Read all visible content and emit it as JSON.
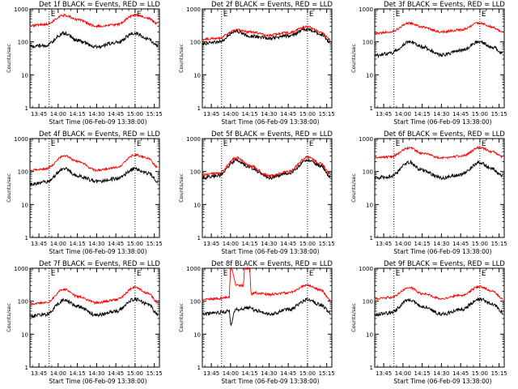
{
  "colors": {
    "events": "#000000",
    "lld": "#ff0000",
    "axes": "#000000",
    "background": "#ffffff"
  },
  "chart_data": [
    {
      "type": "line",
      "panel": 1,
      "title": "Det 1f BLACK = Events, RED = LLD",
      "xlabel": "Start Time (06-Feb-09 13:38:00)",
      "ylabel": "Counts/sec",
      "x_ticks": [
        "13:45",
        "14:00",
        "14:15",
        "14:30",
        "14:45",
        "15:00",
        "15:15"
      ],
      "y_ticks": [
        "1",
        "10",
        "100",
        "1000"
      ],
      "yscale": "log",
      "ylim": [
        1,
        1000
      ],
      "marker_times": [
        "13:53",
        "15:00"
      ],
      "corner_letters": [
        "E",
        "E"
      ],
      "series": [
        {
          "role": "events",
          "x": [
            "13:38",
            "13:50",
            "14:05",
            "14:15",
            "14:30",
            "14:45",
            "15:00",
            "15:10",
            "15:18"
          ],
          "y": [
            75,
            78,
            185,
            110,
            70,
            95,
            185,
            120,
            75
          ]
        },
        {
          "role": "lld",
          "x": [
            "13:38",
            "13:50",
            "14:05",
            "14:15",
            "14:30",
            "14:45",
            "15:00",
            "15:10",
            "15:18"
          ],
          "y": [
            310,
            340,
            640,
            470,
            300,
            330,
            650,
            520,
            350
          ]
        }
      ]
    },
    {
      "type": "line",
      "panel": 2,
      "title": "Det 2f BLACK = Events, RED = LLD",
      "xlabel": "Start Time (06-Feb-09 13:38:00)",
      "ylabel": "Counts/sec",
      "x_ticks": [
        "13:45",
        "14:00",
        "14:15",
        "14:30",
        "14:45",
        "15:00",
        "15:15"
      ],
      "y_ticks": [
        "1",
        "10",
        "100",
        "1000"
      ],
      "yscale": "log",
      "ylim": [
        1,
        1000
      ],
      "marker_times": [
        "13:53",
        "15:00"
      ],
      "corner_letters": [
        "E",
        "E"
      ],
      "series": [
        {
          "role": "events",
          "x": [
            "13:38",
            "13:50",
            "14:05",
            "14:15",
            "14:30",
            "14:45",
            "15:00",
            "15:10",
            "15:18"
          ],
          "y": [
            90,
            100,
            210,
            150,
            130,
            150,
            240,
            170,
            100
          ]
        },
        {
          "role": "lld",
          "x": [
            "13:38",
            "13:50",
            "14:05",
            "14:15",
            "14:30",
            "14:45",
            "15:00",
            "15:10",
            "15:18"
          ],
          "y": [
            120,
            130,
            230,
            200,
            160,
            190,
            290,
            200,
            120
          ]
        }
      ]
    },
    {
      "type": "line",
      "panel": 3,
      "title": "Det 3f BLACK = Events, RED = LLD",
      "xlabel": "Start Time (06-Feb-09 13:38:00)",
      "ylabel": "Counts/sec",
      "x_ticks": [
        "13:45",
        "14:00",
        "14:15",
        "14:30",
        "14:45",
        "15:00",
        "15:15"
      ],
      "y_ticks": [
        "1",
        "10",
        "100",
        "1000"
      ],
      "yscale": "log",
      "ylim": [
        1,
        1000
      ],
      "marker_times": [
        "13:53",
        "15:00"
      ],
      "corner_letters": [
        "E",
        "E"
      ],
      "series": [
        {
          "role": "events",
          "x": [
            "13:38",
            "13:50",
            "14:05",
            "14:15",
            "14:30",
            "14:45",
            "15:00",
            "15:10",
            "15:18"
          ],
          "y": [
            38,
            45,
            100,
            70,
            40,
            55,
            100,
            70,
            45
          ]
        },
        {
          "role": "lld",
          "x": [
            "13:38",
            "13:50",
            "14:05",
            "14:15",
            "14:30",
            "14:45",
            "15:00",
            "15:10",
            "15:18"
          ],
          "y": [
            180,
            200,
            370,
            280,
            200,
            230,
            380,
            280,
            200
          ]
        }
      ]
    },
    {
      "type": "line",
      "panel": 4,
      "title": "Det 4f BLACK = Events, RED = LLD",
      "xlabel": "Start Time (06-Feb-09 13:38:00)",
      "ylabel": "Counts/sec",
      "x_ticks": [
        "13:45",
        "14:00",
        "14:15",
        "14:30",
        "14:45",
        "15:00",
        "15:15"
      ],
      "y_ticks": [
        "1",
        "10",
        "100",
        "1000"
      ],
      "yscale": "log",
      "ylim": [
        1,
        1000
      ],
      "marker_times": [
        "13:53",
        "15:00"
      ],
      "corner_letters": [
        "E",
        "E"
      ],
      "series": [
        {
          "role": "events",
          "x": [
            "13:38",
            "13:50",
            "14:05",
            "14:15",
            "14:30",
            "14:45",
            "15:00",
            "15:10",
            "15:18"
          ],
          "y": [
            40,
            48,
            120,
            75,
            50,
            60,
            120,
            90,
            50
          ]
        },
        {
          "role": "lld",
          "x": [
            "13:38",
            "13:50",
            "14:05",
            "14:15",
            "14:30",
            "14:45",
            "15:00",
            "15:10",
            "15:18"
          ],
          "y": [
            110,
            120,
            300,
            200,
            110,
            130,
            320,
            250,
            130
          ]
        }
      ]
    },
    {
      "type": "line",
      "panel": 5,
      "title": "Det 5f BLACK = Events, RED = LLD",
      "xlabel": "Start Time (06-Feb-09 13:38:00)",
      "ylabel": "Counts/sec",
      "x_ticks": [
        "13:45",
        "14:00",
        "14:15",
        "14:30",
        "14:45",
        "15:00",
        "15:15"
      ],
      "y_ticks": [
        "1",
        "10",
        "100",
        "1000"
      ],
      "yscale": "log",
      "ylim": [
        1,
        1000
      ],
      "marker_times": [
        "13:53",
        "15:00"
      ],
      "corner_letters": [
        "E",
        "E"
      ],
      "series": [
        {
          "role": "events",
          "x": [
            "13:38",
            "13:50",
            "14:05",
            "14:15",
            "14:30",
            "14:45",
            "15:00",
            "15:10",
            "15:18"
          ],
          "y": [
            65,
            75,
            220,
            130,
            65,
            90,
            220,
            150,
            70
          ]
        },
        {
          "role": "lld",
          "x": [
            "13:38",
            "13:50",
            "14:05",
            "14:15",
            "14:30",
            "14:45",
            "15:00",
            "15:10",
            "15:18"
          ],
          "y": [
            80,
            90,
            260,
            150,
            75,
            100,
            270,
            180,
            85
          ]
        }
      ]
    },
    {
      "type": "line",
      "panel": 6,
      "title": "Det 6f BLACK = Events, RED = LLD",
      "xlabel": "Start Time (06-Feb-09 13:38:00)",
      "ylabel": "Counts/sec",
      "x_ticks": [
        "13:45",
        "14:00",
        "14:15",
        "14:30",
        "14:45",
        "15:00",
        "15:15"
      ],
      "y_ticks": [
        "1",
        "10",
        "100",
        "1000"
      ],
      "yscale": "log",
      "ylim": [
        1,
        1000
      ],
      "marker_times": [
        "13:53",
        "15:00"
      ],
      "corner_letters": [
        "E",
        "E"
      ],
      "series": [
        {
          "role": "events",
          "x": [
            "13:38",
            "13:50",
            "14:05",
            "14:15",
            "14:30",
            "14:45",
            "15:00",
            "15:10",
            "15:18"
          ],
          "y": [
            65,
            70,
            190,
            110,
            65,
            80,
            190,
            120,
            70
          ]
        },
        {
          "role": "lld",
          "x": [
            "13:38",
            "13:50",
            "14:05",
            "14:15",
            "14:30",
            "14:45",
            "15:00",
            "15:10",
            "15:18"
          ],
          "y": [
            260,
            280,
            520,
            360,
            260,
            290,
            530,
            400,
            280
          ]
        }
      ]
    },
    {
      "type": "line",
      "panel": 7,
      "title": "Det 7f BLACK = Events, RED = LLD",
      "xlabel": "Start Time (06-Feb-09 13:38:00)",
      "ylabel": "Counts/sec",
      "x_ticks": [
        "13:45",
        "14:00",
        "14:15",
        "14:30",
        "14:45",
        "15:00",
        "15:15"
      ],
      "y_ticks": [
        "1",
        "10",
        "100",
        "1000"
      ],
      "yscale": "log",
      "ylim": [
        1,
        1000
      ],
      "marker_times": [
        "13:53",
        "15:00"
      ],
      "corner_letters": [
        "E",
        "E"
      ],
      "series": [
        {
          "role": "events",
          "x": [
            "13:38",
            "13:50",
            "14:05",
            "14:15",
            "14:30",
            "14:45",
            "15:00",
            "15:10",
            "15:18"
          ],
          "y": [
            35,
            40,
            110,
            70,
            38,
            50,
            115,
            80,
            40
          ]
        },
        {
          "role": "lld",
          "x": [
            "13:38",
            "13:50",
            "14:05",
            "14:15",
            "14:30",
            "14:45",
            "15:00",
            "15:10",
            "15:18"
          ],
          "y": [
            80,
            90,
            230,
            140,
            90,
            110,
            260,
            180,
            90
          ]
        }
      ]
    },
    {
      "type": "line",
      "panel": 8,
      "title": "Det 8f BLACK = Events, RED = LLD",
      "xlabel": "Start Time (06-Feb-09 13:38:00)",
      "ylabel": "Counts/sec",
      "x_ticks": [
        "13:45",
        "14:00",
        "14:15",
        "14:30",
        "14:45",
        "15:00",
        "15:15"
      ],
      "y_ticks": [
        "1",
        "10",
        "100",
        "1000"
      ],
      "yscale": "log",
      "ylim": [
        1,
        1000
      ],
      "marker_times": [
        "13:53",
        "15:00"
      ],
      "corner_letters": [
        "E",
        "E"
      ],
      "series": [
        {
          "role": "events",
          "x": [
            "13:38",
            "13:50",
            "13:59",
            "14:00",
            "14:04",
            "14:10",
            "14:15",
            "14:18",
            "14:30",
            "14:45",
            "15:00",
            "15:10",
            "15:18"
          ],
          "y": [
            40,
            45,
            50,
            20,
            55,
            60,
            65,
            55,
            40,
            55,
            110,
            80,
            45
          ]
        },
        {
          "role": "lld",
          "x": [
            "13:38",
            "13:50",
            "13:59",
            "14:00",
            "14:01",
            "14:04",
            "14:05",
            "14:10",
            "14:11",
            "14:15",
            "14:16",
            "14:18",
            "14:30",
            "14:45",
            "15:00",
            "15:10",
            "15:18"
          ],
          "y": [
            110,
            120,
            130,
            1000,
            1000,
            300,
            300,
            300,
            1000,
            1000,
            160,
            180,
            160,
            180,
            300,
            220,
            110
          ]
        }
      ]
    },
    {
      "type": "line",
      "panel": 9,
      "title": "Det 9f BLACK = Events, RED = LLD",
      "xlabel": "Start Time (06-Feb-09 13:38:00)",
      "ylabel": "Counts/sec",
      "x_ticks": [
        "13:45",
        "14:00",
        "14:15",
        "14:30",
        "14:45",
        "15:00",
        "15:15"
      ],
      "y_ticks": [
        "1",
        "10",
        "100",
        "1000"
      ],
      "yscale": "log",
      "ylim": [
        1,
        1000
      ],
      "marker_times": [
        "13:53",
        "15:00"
      ],
      "corner_letters": [
        "E",
        "E"
      ],
      "series": [
        {
          "role": "events",
          "x": [
            "13:38",
            "13:50",
            "14:05",
            "14:15",
            "14:30",
            "14:45",
            "15:00",
            "15:10",
            "15:18"
          ],
          "y": [
            38,
            45,
            110,
            70,
            40,
            55,
            115,
            80,
            45
          ]
        },
        {
          "role": "lld",
          "x": [
            "13:38",
            "13:50",
            "14:05",
            "14:15",
            "14:30",
            "14:45",
            "15:00",
            "15:10",
            "15:18"
          ],
          "y": [
            120,
            130,
            260,
            170,
            120,
            150,
            280,
            200,
            120
          ]
        }
      ]
    }
  ]
}
